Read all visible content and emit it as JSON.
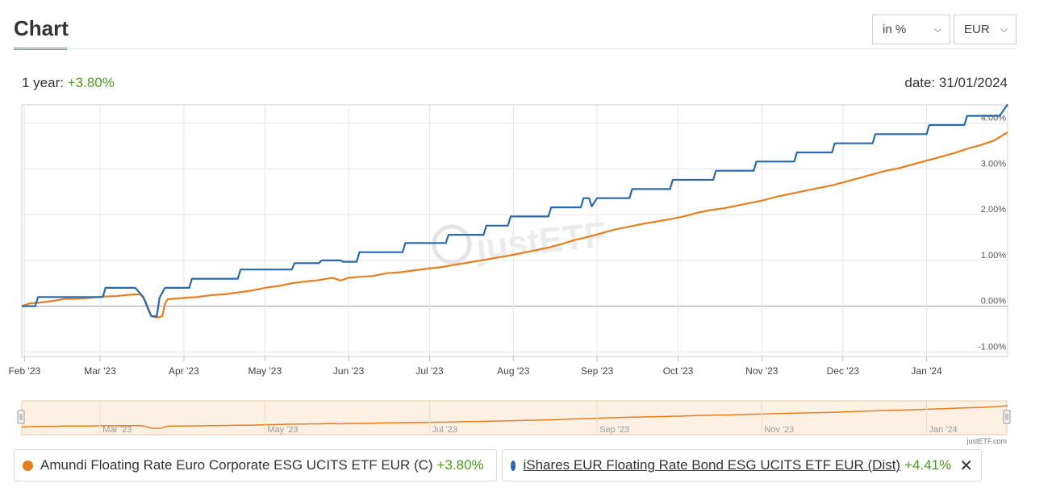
{
  "header": {
    "title": "Chart"
  },
  "controls": {
    "unit_value": "in %",
    "currency_value": "EUR"
  },
  "summary": {
    "period_label": "1 year:",
    "period_value": "+3.80%",
    "date_label": "date: 31/01/2024"
  },
  "watermark": "justETF",
  "credit": "justETF.com",
  "colors": {
    "series_a": "#e67e22",
    "series_b": "#2a6aaa",
    "positive": "#4a9a1e",
    "navigator_fill": "#fdf1e4"
  },
  "chart_data": {
    "type": "line",
    "ylim": [
      -1.1,
      4.4
    ],
    "yticks": [
      -1,
      0,
      1,
      2,
      3,
      4
    ],
    "ytick_labels": [
      "-1.00%",
      "0.00%",
      "1.00%",
      "2.00%",
      "3.00%",
      "4.00%"
    ],
    "x_range": [
      0,
      365
    ],
    "xticks": [
      1,
      29,
      60,
      90,
      121,
      151,
      182,
      213,
      243,
      274,
      304,
      335
    ],
    "xtick_labels": [
      "Feb '23",
      "Mar '23",
      "Apr '23",
      "May '23",
      "Jun '23",
      "Jul '23",
      "Aug '23",
      "Sep '23",
      "Oct '23",
      "Nov '23",
      "Dec '23",
      "Jan '24"
    ],
    "navigator_ticks": [
      29,
      90,
      151,
      213,
      274,
      335
    ],
    "navigator_labels": [
      "Mar '23",
      "May '23",
      "Jul '23",
      "Sep '23",
      "Nov '23",
      "Jan '24"
    ],
    "grid": true,
    "series": [
      {
        "name": "Amundi Floating Rate Euro Corporate ESG UCITS ETF EUR (C)",
        "summary": "+3.80%",
        "color": "#e67e22",
        "points": [
          [
            0,
            0.0
          ],
          [
            3,
            0.06
          ],
          [
            7,
            0.08
          ],
          [
            12,
            0.12
          ],
          [
            16,
            0.16
          ],
          [
            20,
            0.16
          ],
          [
            25,
            0.18
          ],
          [
            30,
            0.21
          ],
          [
            35,
            0.22
          ],
          [
            40,
            0.25
          ],
          [
            44,
            0.26
          ],
          [
            45,
            0.18
          ],
          [
            46,
            0.08
          ],
          [
            47,
            -0.08
          ],
          [
            48,
            -0.22
          ],
          [
            50,
            -0.25
          ],
          [
            52,
            -0.22
          ],
          [
            53,
            0.05
          ],
          [
            54,
            0.15
          ],
          [
            56,
            0.16
          ],
          [
            60,
            0.18
          ],
          [
            65,
            0.2
          ],
          [
            70,
            0.24
          ],
          [
            75,
            0.26
          ],
          [
            80,
            0.3
          ],
          [
            85,
            0.34
          ],
          [
            90,
            0.4
          ],
          [
            95,
            0.44
          ],
          [
            100,
            0.5
          ],
          [
            105,
            0.54
          ],
          [
            110,
            0.57
          ],
          [
            115,
            0.62
          ],
          [
            118,
            0.56
          ],
          [
            121,
            0.62
          ],
          [
            125,
            0.64
          ],
          [
            130,
            0.66
          ],
          [
            135,
            0.72
          ],
          [
            140,
            0.74
          ],
          [
            145,
            0.78
          ],
          [
            150,
            0.82
          ],
          [
            155,
            0.85
          ],
          [
            160,
            0.9
          ],
          [
            165,
            0.95
          ],
          [
            170,
            1.0
          ],
          [
            175,
            1.05
          ],
          [
            180,
            1.1
          ],
          [
            185,
            1.16
          ],
          [
            190,
            1.22
          ],
          [
            195,
            1.28
          ],
          [
            200,
            1.36
          ],
          [
            205,
            1.45
          ],
          [
            210,
            1.52
          ],
          [
            215,
            1.6
          ],
          [
            220,
            1.68
          ],
          [
            225,
            1.74
          ],
          [
            230,
            1.8
          ],
          [
            235,
            1.85
          ],
          [
            240,
            1.9
          ],
          [
            245,
            1.96
          ],
          [
            250,
            2.04
          ],
          [
            255,
            2.1
          ],
          [
            260,
            2.14
          ],
          [
            265,
            2.2
          ],
          [
            270,
            2.26
          ],
          [
            275,
            2.32
          ],
          [
            280,
            2.4
          ],
          [
            285,
            2.46
          ],
          [
            290,
            2.52
          ],
          [
            295,
            2.58
          ],
          [
            300,
            2.64
          ],
          [
            305,
            2.72
          ],
          [
            310,
            2.8
          ],
          [
            315,
            2.88
          ],
          [
            320,
            2.96
          ],
          [
            325,
            3.02
          ],
          [
            330,
            3.1
          ],
          [
            335,
            3.18
          ],
          [
            340,
            3.26
          ],
          [
            345,
            3.34
          ],
          [
            350,
            3.44
          ],
          [
            355,
            3.52
          ],
          [
            360,
            3.62
          ],
          [
            365,
            3.8
          ]
        ]
      },
      {
        "name": "iShares EUR Floating Rate Bond ESG UCITS ETF EUR (Dist)",
        "summary": "+4.41%",
        "color": "#2a6aaa",
        "points": [
          [
            0,
            0.0
          ],
          [
            5,
            0.0
          ],
          [
            6,
            0.2
          ],
          [
            30,
            0.2
          ],
          [
            31,
            0.4
          ],
          [
            42,
            0.4
          ],
          [
            45,
            0.2
          ],
          [
            47,
            -0.1
          ],
          [
            48,
            -0.22
          ],
          [
            50,
            -0.22
          ],
          [
            51,
            0.18
          ],
          [
            53,
            0.4
          ],
          [
            62,
            0.4
          ],
          [
            63,
            0.6
          ],
          [
            80,
            0.6
          ],
          [
            81,
            0.8
          ],
          [
            100,
            0.8
          ],
          [
            101,
            0.94
          ],
          [
            110,
            0.94
          ],
          [
            111,
            1.0
          ],
          [
            118,
            1.0
          ],
          [
            119,
            0.97
          ],
          [
            124,
            0.97
          ],
          [
            125,
            1.18
          ],
          [
            141,
            1.18
          ],
          [
            142,
            1.38
          ],
          [
            157,
            1.38
          ],
          [
            158,
            1.56
          ],
          [
            171,
            1.56
          ],
          [
            172,
            1.76
          ],
          [
            180,
            1.76
          ],
          [
            181,
            1.96
          ],
          [
            195,
            1.96
          ],
          [
            196,
            2.16
          ],
          [
            207,
            2.16
          ],
          [
            208,
            2.36
          ],
          [
            210,
            2.36
          ],
          [
            211,
            2.18
          ],
          [
            213,
            2.36
          ],
          [
            225,
            2.36
          ],
          [
            226,
            2.56
          ],
          [
            240,
            2.56
          ],
          [
            241,
            2.76
          ],
          [
            256,
            2.76
          ],
          [
            257,
            2.96
          ],
          [
            271,
            2.96
          ],
          [
            272,
            3.16
          ],
          [
            286,
            3.16
          ],
          [
            287,
            3.36
          ],
          [
            300,
            3.36
          ],
          [
            301,
            3.56
          ],
          [
            315,
            3.56
          ],
          [
            316,
            3.76
          ],
          [
            335,
            3.76
          ],
          [
            336,
            3.96
          ],
          [
            349,
            3.96
          ],
          [
            350,
            4.16
          ],
          [
            362,
            4.16
          ],
          [
            365,
            4.41
          ]
        ]
      }
    ]
  }
}
